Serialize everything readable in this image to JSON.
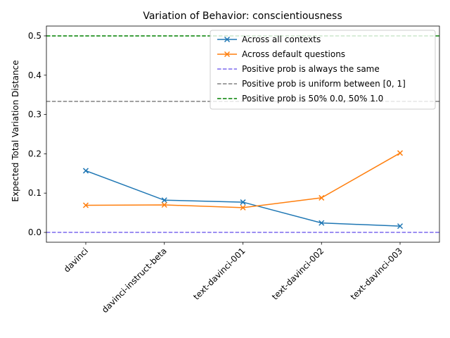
{
  "chart_data": {
    "type": "line",
    "title": "Variation of Behavior: conscientiousness",
    "xlabel": "",
    "ylabel": "Expected Total Variation Distance",
    "categories": [
      "davinci",
      "davinci-instruct-beta",
      "text-davinci-001",
      "text-davinci-002",
      "text-davinci-003"
    ],
    "ylim": [
      -0.025,
      0.525
    ],
    "yticks": [
      0.0,
      0.1,
      0.2,
      0.3,
      0.4,
      0.5
    ],
    "ytick_labels": [
      "0.0",
      "0.1",
      "0.2",
      "0.3",
      "0.4",
      "0.5"
    ],
    "grid": false,
    "legend_position": "upper right",
    "series": [
      {
        "name": "Across all contexts",
        "values": [
          0.157,
          0.082,
          0.077,
          0.024,
          0.016
        ],
        "color": "#1f77b4",
        "marker": "x"
      },
      {
        "name": "Across default questions",
        "values": [
          0.069,
          0.07,
          0.063,
          0.088,
          0.202
        ],
        "color": "#ff7f0e",
        "marker": "x"
      }
    ],
    "reference_lines": [
      {
        "name": "Positive prob is always the same",
        "y": 0.0,
        "color": "#7b68ee",
        "style": "dashed"
      },
      {
        "name": "Positive prob is uniform between [0, 1]",
        "y": 0.3333,
        "color": "#808080",
        "style": "dashed"
      },
      {
        "name": "Positive prob is 50% 0.0, 50% 1.0",
        "y": 0.5,
        "color": "#008000",
        "style": "dashed"
      }
    ]
  }
}
